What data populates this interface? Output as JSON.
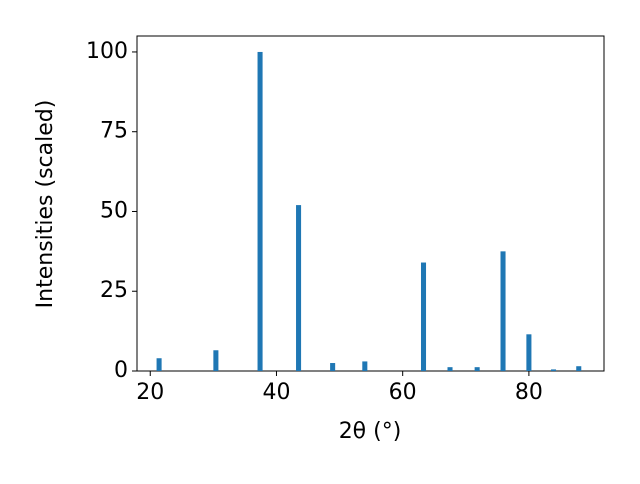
{
  "chart_data": {
    "type": "bar",
    "xlabel": "2θ (°)",
    "ylabel": "Intensities (scaled)",
    "x": [
      21.4,
      30.4,
      37.4,
      43.5,
      48.9,
      54.0,
      63.3,
      67.5,
      71.8,
      75.9,
      80.0,
      83.9,
      87.9
    ],
    "values": [
      4,
      6.5,
      100,
      52,
      2.5,
      3,
      34,
      1.2,
      1.2,
      37.5,
      11.5,
      0.5,
      1.5
    ],
    "bar_width": 0.8,
    "color": "#1f77b4",
    "xlim": [
      17.9,
      91.9
    ],
    "xticks": [
      20,
      40,
      60,
      80
    ],
    "ylim": [
      0,
      105
    ],
    "yticks": [
      0,
      25,
      50,
      75,
      100
    ]
  }
}
